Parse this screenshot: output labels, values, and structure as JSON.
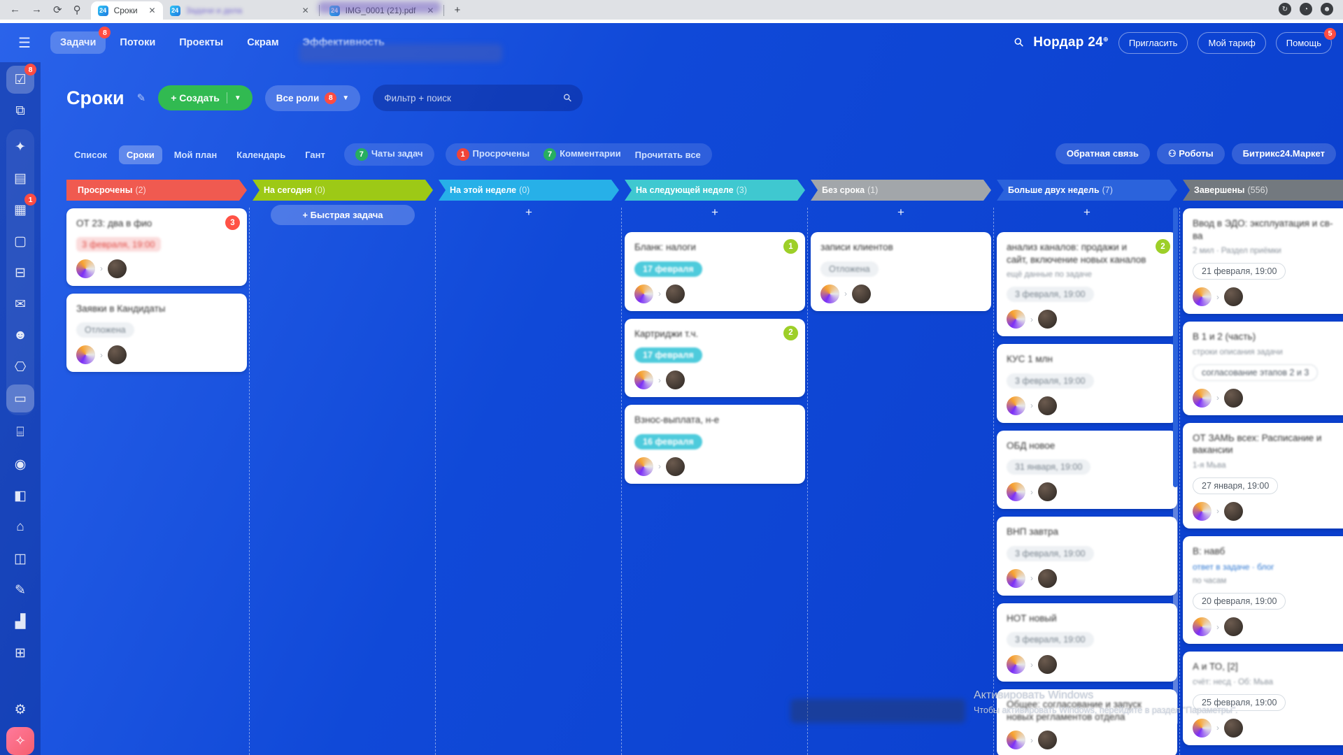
{
  "browser": {
    "tabs": [
      {
        "title": "Сроки",
        "active": true,
        "blurred": false
      },
      {
        "title": "Задачи и дела",
        "active": false,
        "blurred": true
      },
      {
        "title": "IMG_0001 (21).pdf",
        "active": false,
        "blurred": false
      }
    ],
    "new_tab_label": "+",
    "nav_icons": [
      "back-arrow",
      "forward-arrow",
      "refresh",
      "link"
    ],
    "right_icons": [
      "update-circle",
      "clock-circle",
      "profile-circle"
    ]
  },
  "topnav": {
    "items": [
      {
        "label": "Задачи",
        "active": true,
        "badge": "8"
      },
      {
        "label": "Потоки",
        "active": false
      },
      {
        "label": "Проекты",
        "active": false
      },
      {
        "label": "Скрам",
        "active": false
      },
      {
        "label": "Эффективность",
        "active": false,
        "blurred": true
      }
    ],
    "portal_name": "Нордар 24",
    "invite_label": "Пригласить",
    "tariff_label": "Мой тариф",
    "help_label": "Помощь",
    "help_badge": "5"
  },
  "page_header": {
    "title": "Сроки",
    "create_label": "+ Создать",
    "roles_label": "Все роли",
    "roles_badge": "8",
    "filter_placeholder": "Фильтр + поиск"
  },
  "view_tabs": {
    "items": [
      {
        "label": "Список",
        "active": false
      },
      {
        "label": "Сроки",
        "active": true
      },
      {
        "label": "Мой план",
        "active": false
      },
      {
        "label": "Календарь",
        "active": false
      },
      {
        "label": "Гант",
        "active": false
      }
    ],
    "chats": {
      "count": "7",
      "label": "Чаты задач"
    },
    "overdue": {
      "count": "1",
      "label": "Просрочены"
    },
    "comments": {
      "count": "7",
      "label": "Комментарии"
    },
    "read_all_label": "Прочитать все",
    "right_buttons": [
      "Обратная связь",
      "Роботы",
      "Битрикс24.Маркет"
    ]
  },
  "board": {
    "quick_task_label": "+ Быстрая задача",
    "columns": [
      {
        "label": "Просрочены",
        "count": "2",
        "color": "#f05a50",
        "plus": false,
        "quick": false,
        "cards": [
          {
            "title": "ОТ 23: два в фио",
            "badge": "3",
            "badge_color": "red",
            "overdue_text": "3 февраля, 19:00",
            "avatars": true
          },
          {
            "title": "Заявки в Кандидаты",
            "pill": {
              "text": "Отложена",
              "type": "gray"
            },
            "avatars": true
          }
        ]
      },
      {
        "label": "На сегодня",
        "count": "0",
        "color": "#9dc916",
        "plus": false,
        "quick": true,
        "cards": []
      },
      {
        "label": "На этой неделе",
        "count": "0",
        "color": "#27b0e8",
        "plus": true,
        "quick": false,
        "cards": []
      },
      {
        "label": "На следующей неделе",
        "count": "3",
        "color": "#3fc8d0",
        "plus": true,
        "quick": false,
        "cards": [
          {
            "title": "Бланк: налоги",
            "badge": "1",
            "badge_color": "lime",
            "pill": {
              "text": "17 февраля",
              "type": "cyan"
            },
            "avatars": true
          },
          {
            "title": "Картриджи т.ч.",
            "badge": "2",
            "badge_color": "lime",
            "pill": {
              "text": "17 февраля",
              "type": "cyan"
            },
            "avatars": true
          },
          {
            "title": "Взнос-выплата, н-е",
            "pill": {
              "text": "16 февраля",
              "type": "cyan"
            },
            "avatars": true
          }
        ]
      },
      {
        "label": "Без срока",
        "count": "1",
        "color": "#a2a6aa",
        "plus": true,
        "quick": false,
        "cards": [
          {
            "title": "записи клиентов",
            "pill": {
              "text": "Отложена",
              "type": "gray"
            },
            "avatars": true
          }
        ]
      },
      {
        "label": "Больше двух недель",
        "count": "7",
        "color": "#2b63dc",
        "plus": true,
        "quick": false,
        "scrollbar": true,
        "cards": [
          {
            "title": "анализ каналов: продажи и сайт, включение новых каналов",
            "badge": "2",
            "badge_color": "lime",
            "note": "ещё данные по задаче",
            "pill": {
              "text": "3 февраля, 19:00",
              "type": "gray"
            },
            "avatars": true
          },
          {
            "title": "КУС 1 млн",
            "pill": {
              "text": "3 февраля, 19:00",
              "type": "gray"
            },
            "avatars": true
          },
          {
            "title": "ОБД новое",
            "pill": {
              "text": "31 января, 19:00",
              "type": "gray"
            },
            "avatars": true
          },
          {
            "title": "ВНП завтра",
            "pill": {
              "text": "3 февраля, 19:00",
              "type": "gray"
            },
            "avatars": true
          },
          {
            "title": "НОТ новый",
            "pill": {
              "text": "3 февраля, 19:00",
              "type": "gray"
            },
            "avatars": true
          },
          {
            "title": "Общее: согласование и запуск новых регламентов отдела",
            "avatars": true
          }
        ]
      },
      {
        "label": "Завершены",
        "count": "556",
        "color": "#73797f",
        "plus": false,
        "quick": false,
        "cards": [
          {
            "title": "Ввод в ЭДО: эксплуатация и св-ва",
            "note": "2 мил · Раздел приёмки",
            "pill": {
              "text": "21 февраля, 19:00",
              "type": "white"
            },
            "avatars": true
          },
          {
            "title": "В 1 и 2 (часть)",
            "note": "строки описания задачи",
            "pill": {
              "text": "согласование этапов 2 и 3",
              "type": "white",
              "blur": true
            },
            "avatars": true
          },
          {
            "title": "ОТ ЗАМЬ всех: Расписание и вакансии",
            "note": "1-я Мьва",
            "pill": {
              "text": "27 января, 19:00",
              "type": "white"
            },
            "avatars": true
          },
          {
            "title": "В: навб",
            "link": "ответ в задаче · блог",
            "note": "по часам",
            "pill": {
              "text": "20 февраля, 19:00",
              "type": "white"
            },
            "avatars": true
          },
          {
            "title": "А и ТО, [2]",
            "note": "счёт: несд · Об: Мьва",
            "pill": {
              "text": "25 февраля, 19:00",
              "type": "white"
            },
            "avatars": true
          }
        ]
      }
    ]
  },
  "sidebar": {
    "icons": [
      {
        "name": "tasks-icon",
        "glyph": "☑",
        "badge": "8",
        "active": true
      },
      {
        "name": "collab-icon",
        "glyph": "⧉"
      },
      {
        "name": "ai-assistant-icon",
        "glyph": "✦",
        "group_start": true
      },
      {
        "name": "news-feed-icon",
        "glyph": "▤"
      },
      {
        "name": "calendar-icon",
        "glyph": "▦",
        "badge": "1"
      },
      {
        "name": "documents-icon",
        "glyph": "▢"
      },
      {
        "name": "drive-icon",
        "glyph": "⊟"
      },
      {
        "name": "mail-icon",
        "glyph": "✉"
      },
      {
        "name": "groups-icon",
        "glyph": "☻"
      },
      {
        "name": "crm-icon",
        "glyph": "⎔"
      },
      {
        "name": "sign-desk-icon",
        "glyph": "▭",
        "active": true,
        "group_end": true
      },
      {
        "name": "market-cart-icon",
        "glyph": "⌸"
      },
      {
        "name": "robots-icon",
        "glyph": "◉"
      },
      {
        "name": "messenger-icon",
        "glyph": "◧"
      },
      {
        "name": "warehouse-icon",
        "glyph": "⌂"
      },
      {
        "name": "products-icon",
        "glyph": "◫"
      },
      {
        "name": "esign-icon",
        "glyph": "✎"
      },
      {
        "name": "analytics-icon",
        "glyph": "▟"
      },
      {
        "name": "booking-icon",
        "glyph": "⊞"
      },
      {
        "name": "settings-gear-icon",
        "glyph": "⚙",
        "bottom": true
      },
      {
        "name": "copilot-icon",
        "glyph": "✧",
        "copilot": true
      }
    ]
  },
  "watermark": {
    "line1": "Активировать Windows",
    "line2": "Чтобы активировать Windows, перейдите в раздел \"Параметры\"."
  }
}
